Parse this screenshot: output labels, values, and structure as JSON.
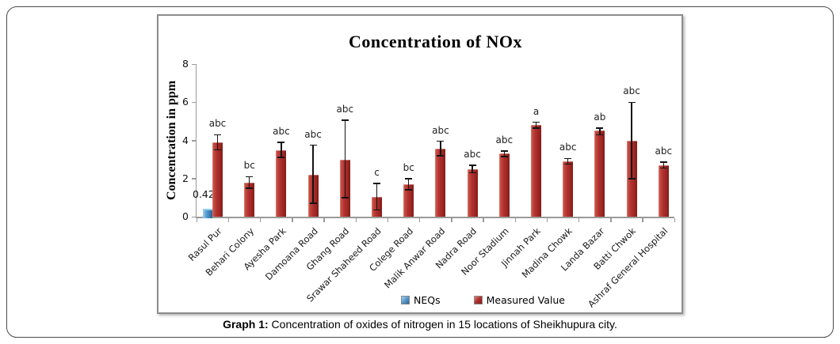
{
  "caption": {
    "prefix": "Graph 1:",
    "text": " Concentration of oxides of nitrogen in 15 locations of Sheikhupura city."
  },
  "chart_data": {
    "type": "bar",
    "title": "Concentration of NOx",
    "xlabel": "",
    "ylabel": "Concentration  in ppm",
    "ylim": [
      0,
      8
    ],
    "yticks": [
      0,
      2,
      4,
      6,
      8
    ],
    "grid": false,
    "legend_position": "bottom-inside",
    "categories": [
      "Rasul Pur",
      "Behari Colony",
      "Ayesha Park",
      "Damoana Road",
      "Ghang Road",
      "Srawar Shaheed Road",
      "Colege Road",
      "Malik Anwar Road",
      "Nadra Road",
      "Noor Stadium",
      "Jinnah Park",
      "Madina Chowk",
      "Landa Bazar",
      "Batti Chwok",
      "Ashraf General Hospital"
    ],
    "series": [
      {
        "name": "NEQs",
        "color": "#4a8fc7",
        "values": [
          0.42,
          0,
          0,
          0,
          0,
          0,
          0,
          0,
          0,
          0,
          0,
          0,
          0,
          0,
          0
        ],
        "data_label": "0.42"
      },
      {
        "name": "Measured Value",
        "color": "#b23230",
        "values": [
          3.9,
          1.8,
          3.5,
          2.2,
          3.0,
          1.05,
          1.7,
          3.55,
          2.5,
          3.3,
          4.8,
          2.9,
          4.5,
          4.0,
          2.7
        ],
        "error_low": [
          3.5,
          1.5,
          3.1,
          0.7,
          1.0,
          0.35,
          1.4,
          3.2,
          2.3,
          3.15,
          4.65,
          2.75,
          4.3,
          2.0,
          2.55
        ],
        "error_high": [
          4.3,
          2.1,
          3.9,
          3.75,
          5.05,
          1.75,
          2.0,
          3.95,
          2.7,
          3.45,
          4.95,
          3.05,
          4.65,
          6.0,
          2.85
        ]
      }
    ],
    "point_labels": [
      "abc",
      "bc",
      "abc",
      "abc",
      "abc",
      "c",
      "bc",
      "abc",
      "abc",
      "abc",
      "a",
      "abc",
      "ab",
      "abc",
      "abc"
    ]
  }
}
